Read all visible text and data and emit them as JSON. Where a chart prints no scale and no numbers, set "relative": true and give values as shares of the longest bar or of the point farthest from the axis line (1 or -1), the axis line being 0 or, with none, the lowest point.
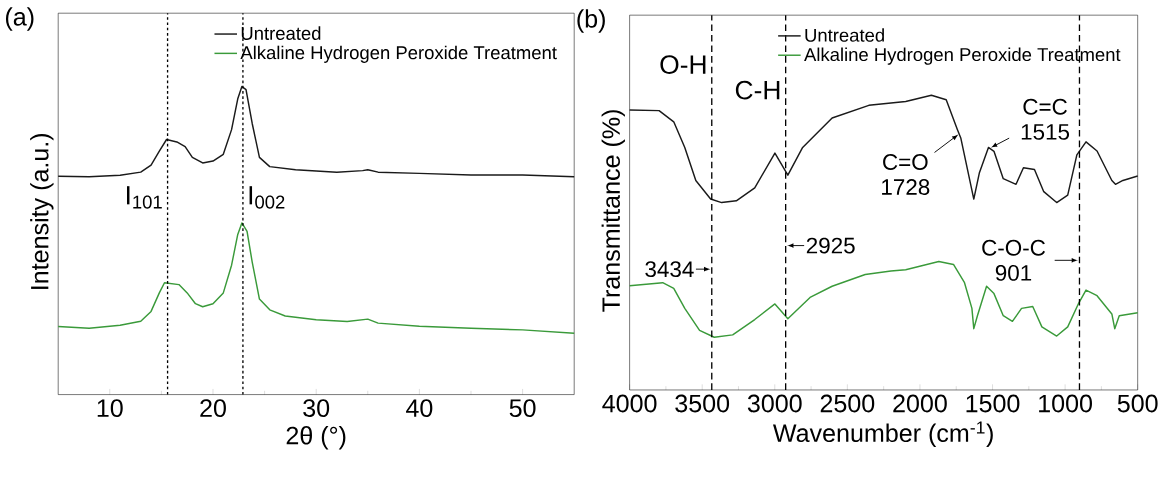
{
  "chart_data": [
    {
      "type": "line",
      "title": "(a)",
      "xlabel": "2θ (°)",
      "ylabel": "Intensity (a.u.)",
      "relative": true,
      "xlim": [
        5,
        55
      ],
      "xticks": [
        10,
        20,
        30,
        40,
        50
      ],
      "legend": "top right",
      "series": [
        {
          "name": "Untreated",
          "color": "#1a1a1a",
          "x": [
            5,
            8,
            11,
            13,
            14,
            14.8,
            15.5,
            16.5,
            17.3,
            18,
            19,
            20,
            21,
            21.8,
            22.4,
            22.8,
            23.2,
            23.8,
            24.5,
            25.5,
            28,
            32,
            34.5,
            35,
            36,
            40,
            45,
            50,
            55
          ],
          "values": [
            0.709,
            0.707,
            0.712,
            0.722,
            0.745,
            0.79,
            0.828,
            0.82,
            0.805,
            0.77,
            0.752,
            0.758,
            0.78,
            0.86,
            0.96,
            1.0,
            0.99,
            0.88,
            0.77,
            0.74,
            0.73,
            0.722,
            0.727,
            0.73,
            0.722,
            0.718,
            0.713,
            0.713,
            0.707
          ]
        },
        {
          "name": "Alkaline Hydrogen Peroxide Treatment",
          "color": "#3a9a3a",
          "x": [
            5,
            8,
            11,
            13,
            14,
            14.8,
            15.3,
            16.7,
            17.5,
            18.3,
            19,
            20,
            21,
            21.8,
            22.4,
            22.8,
            23.3,
            23.8,
            24.5,
            25.5,
            27,
            30,
            33,
            35,
            36,
            40,
            45,
            50,
            55
          ],
          "values": [
            0.221,
            0.215,
            0.225,
            0.238,
            0.27,
            0.33,
            0.363,
            0.357,
            0.33,
            0.295,
            0.285,
            0.295,
            0.33,
            0.42,
            0.52,
            0.557,
            0.53,
            0.43,
            0.31,
            0.275,
            0.255,
            0.243,
            0.237,
            0.245,
            0.232,
            0.222,
            0.215,
            0.21,
            0.199
          ]
        }
      ],
      "ref_lines": [
        {
          "axis": "x",
          "value": 15.6,
          "label": "I$_{101}$",
          "line_style": "dotted"
        },
        {
          "axis": "x",
          "value": 22.9,
          "label": "I$_{002}$",
          "line_style": "dotted"
        }
      ]
    },
    {
      "type": "line",
      "title": "(b)",
      "xlabel": "Wavenumber (cm$^{-1}$)",
      "ylabel": "Transmittance (%)",
      "relative": true,
      "xlim": [
        4000,
        500
      ],
      "xticks": [
        4000,
        3500,
        3000,
        2500,
        2000,
        1500,
        1000,
        500
      ],
      "legend": "top right",
      "series": [
        {
          "name": "Untreated",
          "color": "#1a1a1a",
          "x": [
            4000,
            3797,
            3696,
            3620,
            3544,
            3442,
            3366,
            3265,
            3138,
            2999,
            2910,
            2808,
            2605,
            2352,
            2098,
            1921,
            1819,
            1743,
            1718,
            1629,
            1591,
            1528,
            1490,
            1426,
            1338,
            1287,
            1211,
            1147,
            1058,
            982,
            919,
            856,
            780,
            678,
            653,
            602,
            500
          ],
          "values": [
            0.95,
            0.948,
            0.91,
            0.823,
            0.711,
            0.648,
            0.636,
            0.642,
            0.686,
            0.804,
            0.729,
            0.823,
            0.923,
            0.966,
            0.979,
            1.0,
            0.985,
            0.885,
            0.854,
            0.648,
            0.736,
            0.823,
            0.81,
            0.717,
            0.698,
            0.754,
            0.748,
            0.673,
            0.636,
            0.661,
            0.798,
            0.842,
            0.811,
            0.711,
            0.698,
            0.711,
            0.726
          ]
        },
        {
          "name": "Alkaline Hydrogen Peroxide Treatment",
          "color": "#3a9a3a",
          "x": [
            4000,
            3772,
            3696,
            3620,
            3518,
            3417,
            3290,
            3138,
            2999,
            2910,
            2757,
            2605,
            2377,
            2200,
            2098,
            1870,
            1769,
            1693,
            1642,
            1629,
            1604,
            1541,
            1490,
            1426,
            1363,
            1300,
            1223,
            1160,
            1058,
            982,
            906,
            856,
            780,
            678,
            658,
            627,
            500
          ],
          "values": [
            0.354,
            0.364,
            0.345,
            0.277,
            0.202,
            0.179,
            0.187,
            0.239,
            0.292,
            0.242,
            0.314,
            0.352,
            0.392,
            0.404,
            0.408,
            0.436,
            0.426,
            0.364,
            0.277,
            0.208,
            0.252,
            0.352,
            0.327,
            0.252,
            0.233,
            0.277,
            0.283,
            0.214,
            0.183,
            0.214,
            0.295,
            0.339,
            0.32,
            0.258,
            0.208,
            0.252,
            0.262
          ]
        }
      ],
      "ref_lines": [
        {
          "axis": "x",
          "value": 3434,
          "label": "O-H",
          "line_style": "dashed"
        },
        {
          "axis": "x",
          "value": 2925,
          "label": "C-H",
          "line_style": "dashed"
        },
        {
          "axis": "x",
          "value": 901,
          "line_style": "dashed"
        }
      ],
      "annotations": [
        {
          "text": "3434",
          "x": 3434,
          "y": 0.41
        },
        {
          "text": "2925",
          "x": 2925,
          "y": 0.49
        },
        {
          "text": "C=O 1728",
          "x": 1728,
          "y": 0.87
        },
        {
          "text": "C=C 1515",
          "x": 1520,
          "y": 0.82
        },
        {
          "text": "C-O-C 901",
          "x": 901,
          "y": 0.44
        }
      ]
    }
  ]
}
